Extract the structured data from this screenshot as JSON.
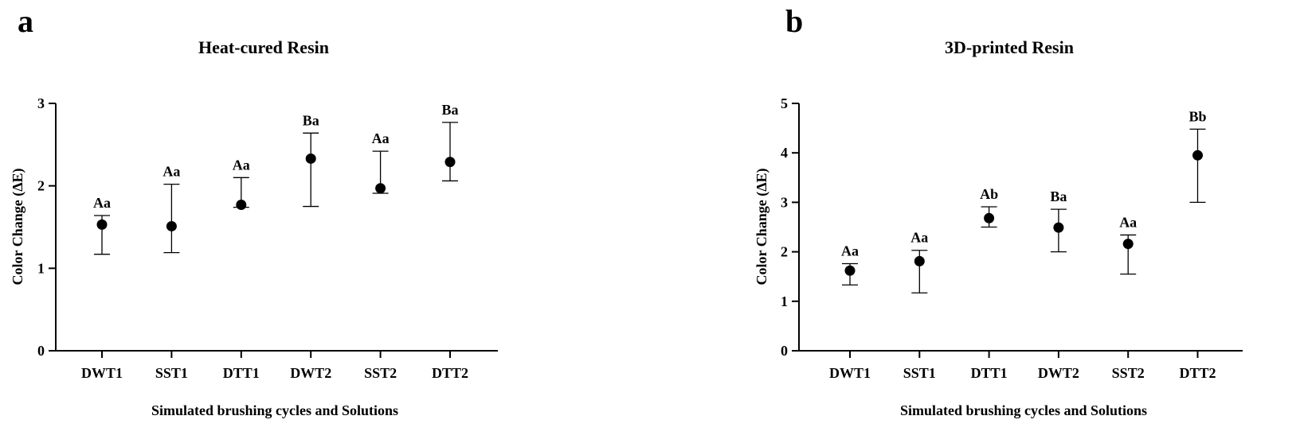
{
  "chart_data": [
    {
      "type": "scatter",
      "panel_label": "a",
      "title": "Heat-cured Resin",
      "xlabel": "Simulated brushing cycles and Solutions",
      "ylabel": "Color Change (ΔE)",
      "ylim": [
        0,
        3
      ],
      "yticks": [
        0,
        1,
        2,
        3
      ],
      "categories": [
        "DWT1",
        "SST1",
        "DTT1",
        "DWT2",
        "SST2",
        "DTT2"
      ],
      "values": [
        1.53,
        1.51,
        1.77,
        2.33,
        1.97,
        2.29
      ],
      "err_low": [
        1.17,
        1.19,
        1.74,
        1.75,
        1.91,
        2.06
      ],
      "err_high": [
        1.64,
        2.02,
        2.1,
        2.64,
        2.42,
        2.77
      ],
      "annotations": [
        "Aa",
        "Aa",
        "Aa",
        "Ba",
        "Aa",
        "Ba"
      ],
      "grid": false,
      "legend": "none"
    },
    {
      "type": "scatter",
      "panel_label": "b",
      "title": "3D-printed Resin",
      "xlabel": "Simulated brushing cycles and Solutions",
      "ylabel": "Color Change (ΔE)",
      "ylim": [
        0,
        5
      ],
      "yticks": [
        0,
        1,
        2,
        3,
        4,
        5
      ],
      "categories": [
        "DWT1",
        "SST1",
        "DTT1",
        "DWT2",
        "SST2",
        "DTT2"
      ],
      "values": [
        1.62,
        1.81,
        2.68,
        2.49,
        2.16,
        3.95
      ],
      "err_low": [
        1.33,
        1.17,
        2.5,
        2.0,
        1.55,
        3.0
      ],
      "err_high": [
        1.76,
        2.03,
        2.91,
        2.86,
        2.34,
        4.48
      ],
      "annotations": [
        "Aa",
        "Aa",
        "Ab",
        "Ba",
        "Aa",
        "Bb"
      ],
      "grid": false,
      "legend": "none"
    }
  ]
}
